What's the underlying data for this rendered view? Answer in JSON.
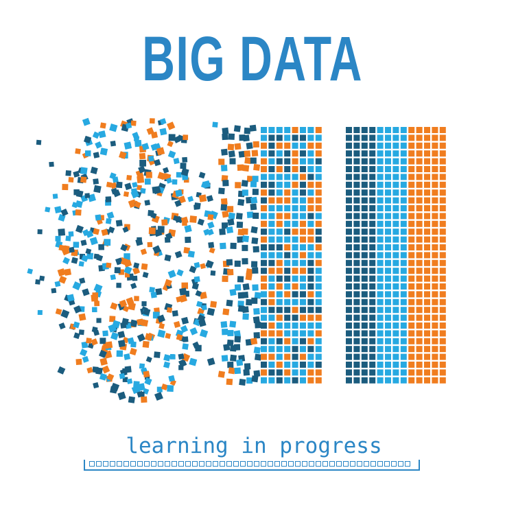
{
  "title": "BIG DATA",
  "caption": "learning in progress",
  "progress": {
    "value": 1.0
  },
  "colors": {
    "dark_blue": "#1b5c7e",
    "light_blue": "#27a9e1",
    "orange": "#f07d1f",
    "text_blue": "#2b86c5"
  },
  "illustration": "scattered-squares-to-ordered-grid"
}
